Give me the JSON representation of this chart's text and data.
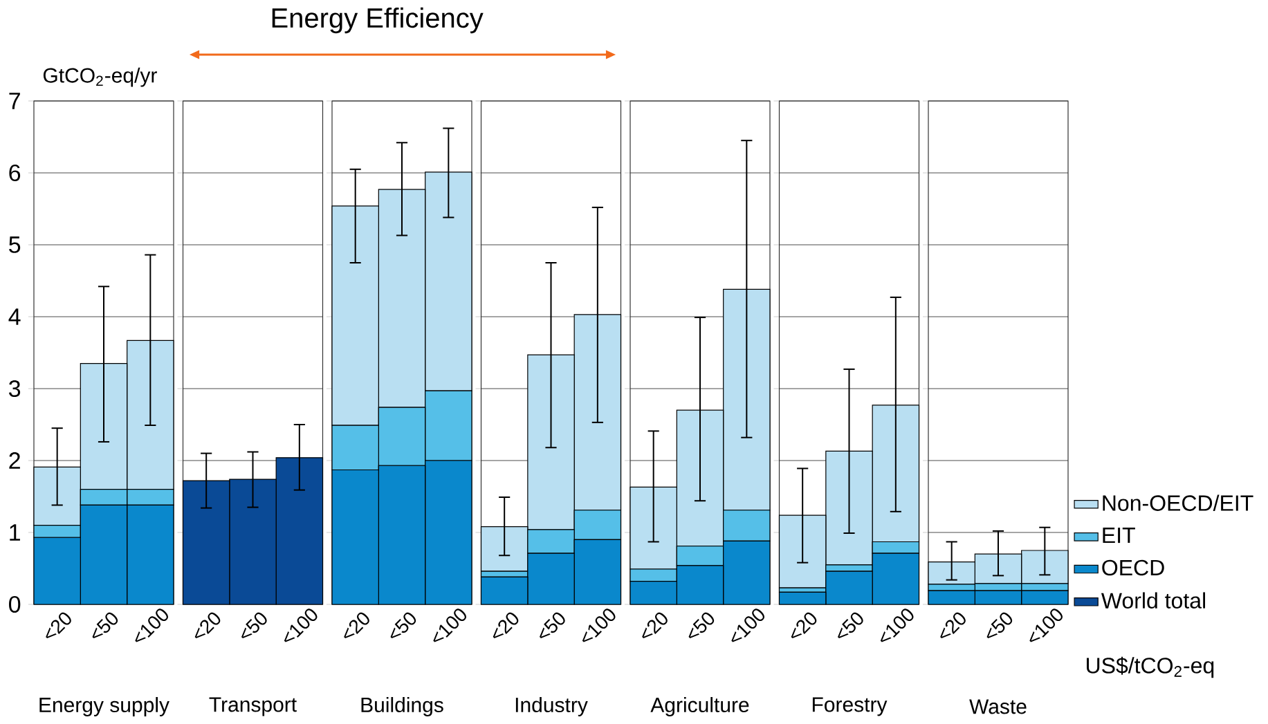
{
  "chart_data": [
    {
      "type": "bar",
      "stacked": true,
      "xlabel": "Energy supply",
      "ylabel": "GtCO$_{2}$-eq/yr",
      "categories": [
        "<20",
        "<50",
        "<100"
      ],
      "ylim": [
        0,
        7
      ],
      "yticks": [
        0,
        1,
        2,
        3,
        4,
        5,
        6,
        7
      ],
      "grid": "y",
      "series": [
        {
          "color": "#0a88cc",
          "values": [
            0.93,
            1.38,
            1.38
          ]
        },
        {
          "color": "#55bfe8",
          "values": [
            0.17,
            0.22,
            0.22
          ]
        },
        {
          "color": "#b9dff2",
          "values": [
            0.81,
            1.75,
            2.07
          ],
          "errors": [
            [
              1.38,
              2.45
            ],
            [
              2.26,
              4.42
            ],
            [
              2.49,
              4.86
            ]
          ]
        }
      ]
    },
    {
      "type": "bar",
      "stacked": true,
      "xlabel": "Transport",
      "categories": [
        "<20",
        "<50",
        "<100"
      ],
      "ylim": [
        0,
        7
      ],
      "yticks": [
        0,
        1,
        2,
        3,
        4,
        5,
        6,
        7
      ],
      "grid": "y",
      "tick_labels": "x",
      "series": [
        {
          "color": "#0a4a96",
          "values": [
            1.72,
            1.74,
            2.04
          ],
          "errors": [
            [
              1.34,
              2.1
            ],
            [
              1.35,
              2.12
            ],
            [
              1.59,
              2.5
            ]
          ]
        }
      ]
    },
    {
      "type": "bar",
      "stacked": true,
      "title": "Energy Efficiency",
      "xlabel": "Buildings",
      "categories": [
        "<20",
        "<50",
        "<100"
      ],
      "ylim": [
        0,
        7
      ],
      "yticks": [
        0,
        1,
        2,
        3,
        4,
        5,
        6,
        7
      ],
      "grid": "y",
      "tick_labels": "x",
      "series": [
        {
          "color": "#0a88cc",
          "values": [
            1.87,
            1.93,
            2.0
          ]
        },
        {
          "color": "#55bfe8",
          "values": [
            0.62,
            0.81,
            0.97
          ]
        },
        {
          "color": "#b9dff2",
          "values": [
            3.05,
            3.03,
            3.04
          ],
          "errors": [
            [
              4.75,
              6.05
            ],
            [
              5.13,
              6.42
            ],
            [
              5.38,
              6.62
            ]
          ]
        }
      ]
    },
    {
      "type": "bar",
      "stacked": true,
      "xlabel": "Industry",
      "categories": [
        "<20",
        "<50",
        "<100"
      ],
      "ylim": [
        0,
        7
      ],
      "yticks": [
        0,
        1,
        2,
        3,
        4,
        5,
        6,
        7
      ],
      "grid": "y",
      "tick_labels": "x",
      "series": [
        {
          "color": "#0a88cc",
          "values": [
            0.38,
            0.71,
            0.9
          ]
        },
        {
          "color": "#55bfe8",
          "values": [
            0.08,
            0.33,
            0.41
          ]
        },
        {
          "color": "#b9dff2",
          "values": [
            0.62,
            2.43,
            2.72
          ],
          "errors": [
            [
              0.68,
              1.49
            ],
            [
              2.18,
              4.75
            ],
            [
              2.53,
              5.52
            ]
          ]
        }
      ]
    },
    {
      "type": "bar",
      "stacked": true,
      "xlabel": "Agriculture",
      "categories": [
        "<20",
        "<50",
        "<100"
      ],
      "ylim": [
        0,
        7
      ],
      "yticks": [
        0,
        1,
        2,
        3,
        4,
        5,
        6,
        7
      ],
      "grid": "y",
      "tick_labels": "x",
      "series": [
        {
          "color": "#0a88cc",
          "values": [
            0.32,
            0.54,
            0.88
          ]
        },
        {
          "color": "#55bfe8",
          "values": [
            0.17,
            0.27,
            0.43
          ]
        },
        {
          "color": "#b9dff2",
          "values": [
            1.14,
            1.89,
            3.07
          ],
          "errors": [
            [
              0.87,
              2.41
            ],
            [
              1.44,
              3.99
            ],
            [
              2.32,
              6.45
            ]
          ]
        }
      ]
    },
    {
      "type": "bar",
      "stacked": true,
      "xlabel": "Forestry",
      "categories": [
        "<20",
        "<50",
        "<100"
      ],
      "ylim": [
        0,
        7
      ],
      "yticks": [
        0,
        1,
        2,
        3,
        4,
        5,
        6,
        7
      ],
      "grid": "y",
      "tick_labels": "x",
      "series": [
        {
          "color": "#0a88cc",
          "values": [
            0.17,
            0.46,
            0.71
          ]
        },
        {
          "color": "#55bfe8",
          "values": [
            0.06,
            0.09,
            0.16
          ]
        },
        {
          "color": "#b9dff2",
          "values": [
            1.01,
            1.58,
            1.9
          ],
          "errors": [
            [
              0.58,
              1.89
            ],
            [
              0.99,
              3.27
            ],
            [
              1.29,
              4.27
            ]
          ]
        }
      ]
    },
    {
      "type": "bar",
      "stacked": true,
      "xlabel": "Waste",
      "categories": [
        "<20",
        "<50",
        "<100"
      ],
      "ylim": [
        0,
        7
      ],
      "yticks": [
        0,
        1,
        2,
        3,
        4,
        5,
        6,
        7
      ],
      "grid": "y",
      "tick_labels": "x",
      "legend": "right",
      "annotations": [
        "US$/tCO$_{2}$-eq"
      ],
      "series": [
        {
          "name": "World total",
          "color": "#0a4a96",
          "values": [
            null,
            null,
            null
          ]
        },
        {
          "name": "OECD",
          "color": "#0a88cc",
          "values": [
            0.19,
            0.19,
            0.19
          ]
        },
        {
          "name": "EIT",
          "color": "#55bfe8",
          "values": [
            0.09,
            0.1,
            0.1
          ]
        },
        {
          "name": "Non-OECD/EIT",
          "color": "#b9dff2",
          "values": [
            0.31,
            0.41,
            0.46
          ],
          "errors": [
            [
              0.34,
              0.87
            ],
            [
              0.4,
              1.02
            ],
            [
              0.41,
              1.07
            ]
          ]
        }
      ]
    }
  ]
}
